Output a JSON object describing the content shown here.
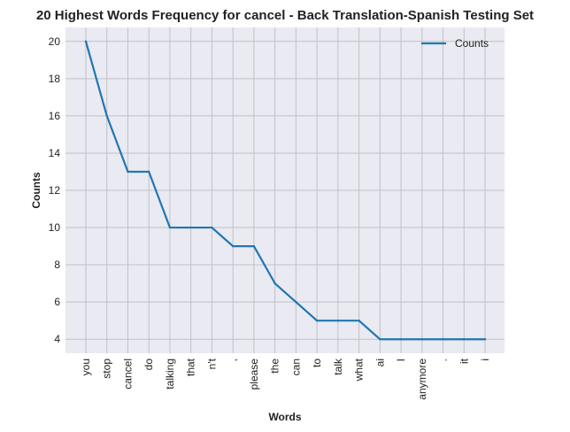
{
  "chart_data": {
    "type": "line",
    "title": "20 Highest Words Frequency for cancel - Back Translation-Spanish Testing Set",
    "xlabel": "Words",
    "ylabel": "Counts",
    "categories": [
      "you",
      "stop",
      "cancel",
      "do",
      "talking",
      "that",
      "n't",
      ",",
      "please",
      "the",
      "can",
      "to",
      "talk",
      "what",
      "ai",
      "I",
      "anymore",
      ".",
      "it",
      "i"
    ],
    "series": [
      {
        "name": "Counts",
        "values": [
          20,
          16,
          13,
          13,
          10,
          10,
          10,
          9,
          9,
          7,
          6,
          5,
          5,
          5,
          4,
          4,
          4,
          4,
          4,
          4
        ]
      }
    ],
    "ylim": [
      3.25,
      20.75
    ],
    "yticks": [
      4,
      6,
      8,
      10,
      12,
      14,
      16,
      18,
      20
    ],
    "grid": true,
    "legend_position": "top-right",
    "colors": {
      "line": "#1f77b4",
      "plot_background": "#eaeaf2",
      "grid": "#c0c0c8"
    }
  }
}
